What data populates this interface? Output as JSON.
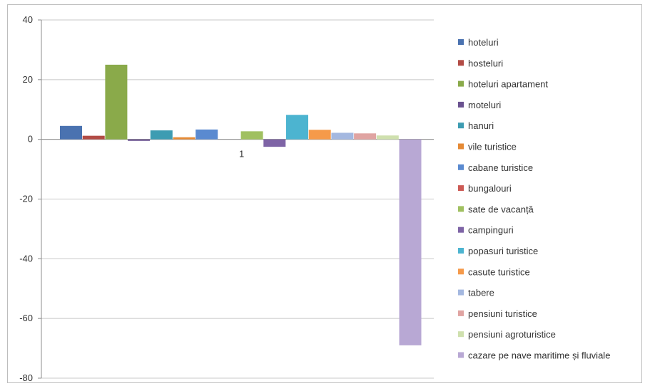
{
  "chart_data": {
    "type": "bar",
    "categories": [
      "1"
    ],
    "ylim": [
      -80,
      40
    ],
    "yticks": [
      40,
      20,
      0,
      -20,
      -40,
      -60,
      -80
    ],
    "grid": true,
    "legend_position": "right",
    "series": [
      {
        "name": "hoteluri",
        "values": [
          4.5
        ],
        "color": "#4a72b0"
      },
      {
        "name": "hosteluri",
        "values": [
          1.2
        ],
        "color": "#b24b45"
      },
      {
        "name": "hoteluri apartament",
        "values": [
          25
        ],
        "color": "#8aaa4a"
      },
      {
        "name": "moteluri",
        "values": [
          -0.5
        ],
        "color": "#6a5290"
      },
      {
        "name": "hanuri",
        "values": [
          3
        ],
        "color": "#3d9cb2"
      },
      {
        "name": "vile turistice",
        "values": [
          0.7
        ],
        "color": "#e58a35"
      },
      {
        "name": "cabane turistice",
        "values": [
          3.3
        ],
        "color": "#5a8ad0"
      },
      {
        "name": "bungalouri",
        "values": [
          0
        ],
        "color": "#cc5a55"
      },
      {
        "name": "sate de vacanță",
        "values": [
          2.7
        ],
        "color": "#a0c060"
      },
      {
        "name": "campinguri",
        "values": [
          -2.5
        ],
        "color": "#7e64a6"
      },
      {
        "name": "popasuri turistice",
        "values": [
          8.2
        ],
        "color": "#4cb4d0"
      },
      {
        "name": "casute turistice",
        "values": [
          3.2
        ],
        "color": "#f59a4a"
      },
      {
        "name": "tabere",
        "values": [
          2.2
        ],
        "color": "#a4b8e0"
      },
      {
        "name": "pensiuni turistice",
        "values": [
          2
        ],
        "color": "#e0a4a2"
      },
      {
        "name": "pensiuni agroturistice",
        "values": [
          1.3
        ],
        "color": "#cfe0ae"
      },
      {
        "name": "cazare pe nave maritime și fluviale",
        "values": [
          -69
        ],
        "color": "#b8a8d4"
      }
    ]
  }
}
